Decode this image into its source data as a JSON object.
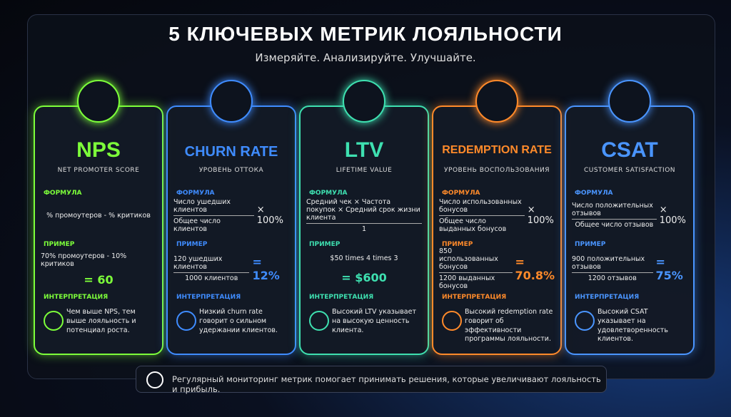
{
  "header": {
    "title": "5 КЛЮЧЕВЫХ МЕТРИК ЛОЯЛЬНОСТИ",
    "subtitle": "Измеряйте. Анализируйте. Улучшайте."
  },
  "cards": [
    {
      "color": "#7dff3a",
      "name": "NPS",
      "subtitle": "NET PROMOTER SCORE",
      "formula_label": "ФОРМУЛА",
      "formula": {
        "lines": [
          "% промоутеров - % критиков"
        ]
      },
      "example_label": "ПРИМЕР",
      "example": {
        "lines": [
          "70% промоутеров - 10% критиков"
        ],
        "result": "= 60"
      },
      "interpretation_label": "ИНТЕРПРЕТАЦИЯ",
      "interpretation": "Чем выше NPS, тем выше лояльность и потенциал роста."
    },
    {
      "color": "#3f8cff",
      "name": "CHURN RATE",
      "subtitle": "УРОВЕНЬ ОТТОКА",
      "formula_label": "ФОРМУЛА",
      "formula": {
        "lines": [
          "Число ушедших клиентов",
          "Общее число клиентов"
        ],
        "suffix": "× 100%"
      },
      "example_label": "ПРИМЕР",
      "example": {
        "lines": [
          "120 ушедших клиентов",
          "1000 клиентов"
        ],
        "result": "= 12%"
      },
      "interpretation_label": "ИНТЕРПРЕТАЦИЯ",
      "interpretation": "Низкий churn rate говорит о сильном удержании клиентов."
    },
    {
      "color": "#3ee0b0",
      "name": "LTV",
      "subtitle": "LIFETIME VALUE",
      "formula_label": "ФОРМУЛА",
      "formula": {
        "lines": [
          "Средний чек × Частота покупок × Средний срок жизни клиента",
          "1"
        ]
      },
      "example_label": "ПРИМЕР",
      "example": {
        "lines": [
          "$50 times 4 times 3"
        ],
        "result": "= $600"
      },
      "interpretation_label": "ИНТЕРПРЕТАЦИЯ",
      "interpretation": "Высокий LTV указывает на высокую ценность клиента."
    },
    {
      "color": "#ff8a2a",
      "name": "REDEMPTION RATE",
      "subtitle": "УРОВЕНЬ ВОСПОЛЬЗОВАНИЯ",
      "formula_label": "ФОРМУЛА",
      "formula": {
        "lines": [
          "Число использованных бонусов",
          "Общее число выданных бонусов"
        ],
        "suffix": "× 100%"
      },
      "example_label": "ПРИМЕР",
      "example": {
        "lines": [
          "850 использованных бонусов",
          "1200 выданных бонусов"
        ],
        "result": "= 70.8%"
      },
      "interpretation_label": "ИНТЕРПРЕТАЦИЯ",
      "interpretation": "Высокий redemption rate говорит об эффективности программы лояльности."
    },
    {
      "color": "#4a95ff",
      "name": "CSAT",
      "subtitle": "CUSTOMER SATISFACTION",
      "formula_label": "ФОРМУЛА",
      "formula": {
        "lines": [
          "Число положительных отзывов",
          "Общее число отзывов"
        ],
        "suffix": "× 100%"
      },
      "example_label": "ПРИМЕР",
      "example": {
        "lines": [
          "900 положительных отзывов",
          "1200 отзывов"
        ],
        "result": "= 75%"
      },
      "interpretation_label": "ИНТЕРПРЕТАЦИЯ",
      "interpretation": "Высокий CSAT указывает на удовлетворенность клиентов."
    }
  ],
  "footer": {
    "text": "Регулярный мониторинг метрик помогает принимать решения, которые увеличивают лояльность и прибыль."
  }
}
